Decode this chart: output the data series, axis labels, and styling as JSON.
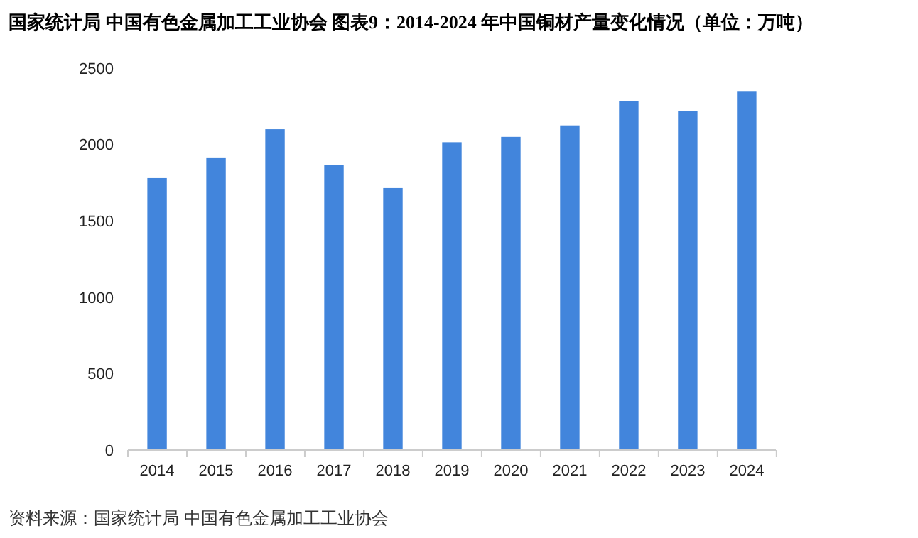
{
  "chart_data": {
    "type": "bar",
    "title": "国家统计局 中国有色金属加工工业协会 图表9：2014-2024 年中国铜材产量变化情况（单位：万吨）",
    "categories": [
      "2014",
      "2015",
      "2016",
      "2017",
      "2018",
      "2019",
      "2020",
      "2021",
      "2022",
      "2023",
      "2024"
    ],
    "values": [
      1780,
      1915,
      2100,
      1865,
      1715,
      2015,
      2050,
      2125,
      2285,
      2220,
      2350
    ],
    "color": "#4285dc",
    "ylim": [
      0,
      2500
    ],
    "yticks": [
      0,
      500,
      1000,
      1500,
      2000,
      2500
    ],
    "grid": false,
    "annotations": [
      "资料来源：国家统计局 中国有色金属加工工业协会"
    ]
  }
}
